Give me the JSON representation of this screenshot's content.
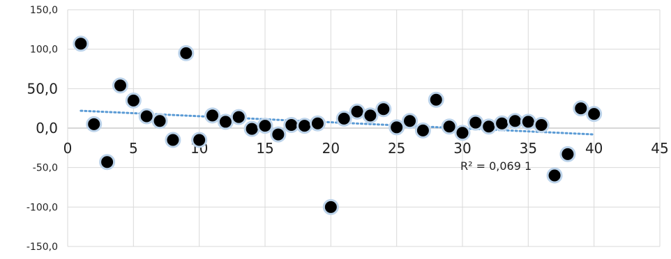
{
  "chart_data": {
    "type": "scatter",
    "title": "",
    "xlabel": "",
    "ylabel": "",
    "xlim": [
      0,
      45
    ],
    "ylim": [
      -150,
      150
    ],
    "x_ticks": [
      "0",
      "5",
      "10",
      "15",
      "20",
      "25",
      "30",
      "35",
      "40",
      "45"
    ],
    "y_ticks": [
      "150,0",
      "100,0",
      "50,0",
      "0,0",
      "-50,0",
      "-100,0",
      "-150,0"
    ],
    "grid": true,
    "legend": "none",
    "marker_color": "#000000",
    "marker_outline": "#bcd3ea",
    "trendline": {
      "type": "linear",
      "color": "#5b9bd5",
      "style": "dotted",
      "x_range": [
        1,
        40
      ],
      "y_at_start": 22,
      "y_at_end": -8
    },
    "r_squared_label": "R² = 0,069 1",
    "series": [
      {
        "points": [
          [
            1,
            107
          ],
          [
            2,
            5
          ],
          [
            3,
            -43
          ],
          [
            4,
            54
          ],
          [
            5,
            35
          ],
          [
            6,
            15
          ],
          [
            7,
            9
          ],
          [
            8,
            -15
          ],
          [
            9,
            95
          ],
          [
            10,
            -15
          ],
          [
            11,
            16
          ],
          [
            12,
            8
          ],
          [
            13,
            14
          ],
          [
            14,
            -1
          ],
          [
            15,
            3
          ],
          [
            16,
            -8
          ],
          [
            17,
            4
          ],
          [
            18,
            3
          ],
          [
            19,
            6
          ],
          [
            20,
            -100
          ],
          [
            21,
            12
          ],
          [
            22,
            21
          ],
          [
            23,
            16
          ],
          [
            24,
            24
          ],
          [
            25,
            1
          ],
          [
            26,
            9
          ],
          [
            27,
            -3
          ],
          [
            28,
            36
          ],
          [
            29,
            2
          ],
          [
            30,
            -6
          ],
          [
            31,
            7
          ],
          [
            32,
            2
          ],
          [
            33,
            6
          ],
          [
            34,
            9
          ],
          [
            35,
            8
          ],
          [
            36,
            4
          ],
          [
            37,
            -60
          ],
          [
            38,
            -33
          ],
          [
            39,
            25
          ],
          [
            40,
            18
          ]
        ]
      }
    ]
  }
}
